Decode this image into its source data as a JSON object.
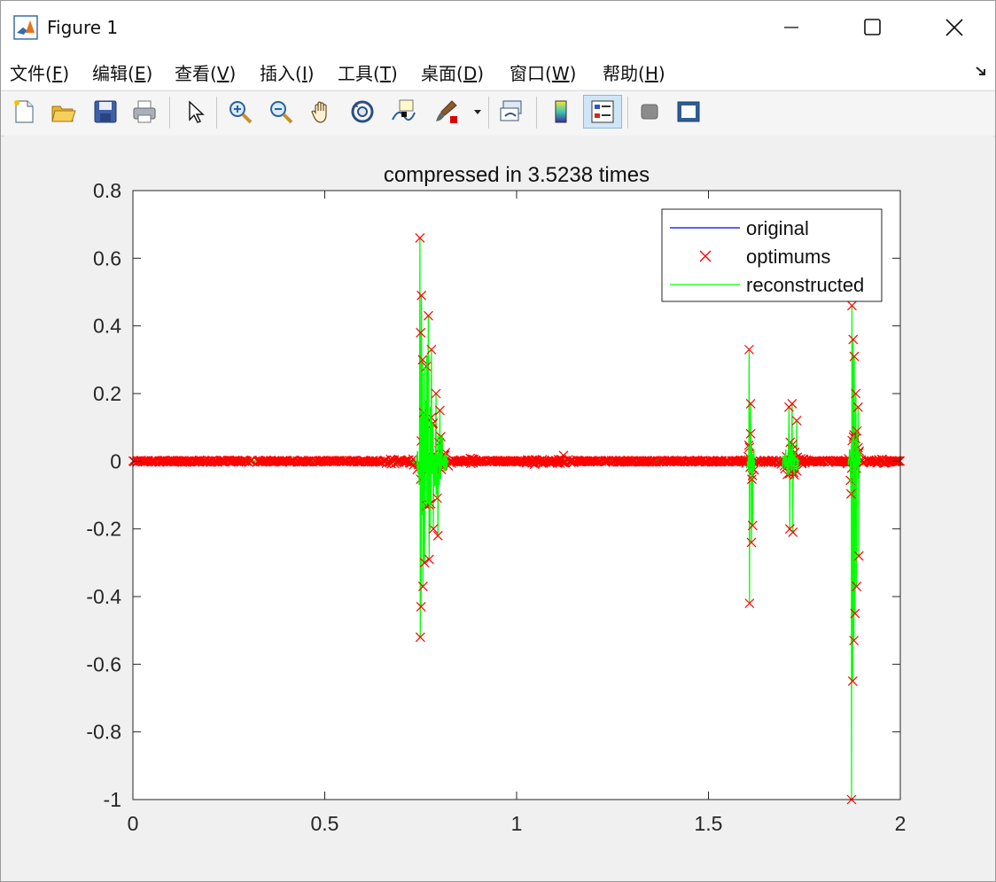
{
  "window": {
    "title": "Figure 1",
    "icons": [
      "matlab-icon",
      "minimize-icon",
      "maximize-icon",
      "close-icon"
    ]
  },
  "menu": [
    {
      "label": "文件(",
      "key": "F",
      "suffix": ")"
    },
    {
      "label": "编辑(",
      "key": "E",
      "suffix": ")"
    },
    {
      "label": "查看(",
      "key": "V",
      "suffix": ")"
    },
    {
      "label": "插入(",
      "key": "I",
      "suffix": ")"
    },
    {
      "label": "工具(",
      "key": "T",
      "suffix": ")"
    },
    {
      "label": "桌面(",
      "key": "D",
      "suffix": ")"
    },
    {
      "label": "窗口(",
      "key": "W",
      "suffix": ")"
    },
    {
      "label": "帮助(",
      "key": "H",
      "suffix": ")"
    }
  ],
  "toolbar": [
    "new-figure-icon",
    "open-file-icon",
    "save-icon",
    "print-icon",
    "pointer-icon",
    "zoom-in-icon",
    "zoom-out-icon",
    "pan-hand-icon",
    "rotate-3d-icon",
    "data-cursor-icon",
    "brush-icon",
    "link-plot-icon",
    "colorbar-icon",
    "legend-icon",
    "hide-plot-tools-icon",
    "show-plot-tools-icon"
  ],
  "colors": {
    "original": "#0000ff",
    "optimums": "#ff0000",
    "reconstructed": "#00ff00"
  },
  "chart_data": {
    "type": "line",
    "title": "compressed in 3.5238 times",
    "xlabel": "",
    "ylabel": "",
    "xlim": [
      0,
      2
    ],
    "ylim": [
      -1,
      0.8
    ],
    "xticks": [
      "0",
      "0.5",
      "1",
      "1.5",
      "2"
    ],
    "yticks": [
      "0.8",
      "0.6",
      "0.4",
      "0.2",
      "0",
      "-0.2",
      "-0.4",
      "-0.6",
      "-0.8",
      "-1"
    ],
    "grid": false,
    "legend_position": "top-right",
    "legend": [
      "original",
      "optimums",
      "reconstructed"
    ],
    "series": [
      {
        "name": "original",
        "style": "line",
        "color": "#0000ff"
      },
      {
        "name": "optimums",
        "style": "x-marker",
        "color": "#ff0000"
      },
      {
        "name": "reconstructed",
        "style": "line",
        "color": "#00ff00"
      }
    ],
    "peaks": [
      {
        "x": 0.748,
        "y": 0.66
      },
      {
        "x": 0.749,
        "y": -0.52
      },
      {
        "x": 0.752,
        "y": 0.49
      },
      {
        "x": 0.75,
        "y": 0.38
      },
      {
        "x": 0.751,
        "y": -0.43
      },
      {
        "x": 0.755,
        "y": 0.3
      },
      {
        "x": 0.756,
        "y": -0.37
      },
      {
        "x": 0.76,
        "y": -0.3
      },
      {
        "x": 0.765,
        "y": 0.28
      },
      {
        "x": 0.77,
        "y": 0.43
      },
      {
        "x": 0.772,
        "y": -0.29
      },
      {
        "x": 0.778,
        "y": 0.33
      },
      {
        "x": 0.783,
        "y": -0.2
      },
      {
        "x": 0.79,
        "y": 0.2
      },
      {
        "x": 0.8,
        "y": 0.15
      },
      {
        "x": 0.795,
        "y": -0.22
      },
      {
        "x": 1.606,
        "y": 0.33
      },
      {
        "x": 1.607,
        "y": -0.42
      },
      {
        "x": 1.61,
        "y": 0.17
      },
      {
        "x": 1.612,
        "y": -0.24
      },
      {
        "x": 1.615,
        "y": -0.19
      },
      {
        "x": 1.71,
        "y": 0.16
      },
      {
        "x": 1.712,
        "y": -0.2
      },
      {
        "x": 1.718,
        "y": 0.17
      },
      {
        "x": 1.72,
        "y": -0.21
      },
      {
        "x": 1.73,
        "y": 0.12
      },
      {
        "x": 1.873,
        "y": -1.0
      },
      {
        "x": 1.874,
        "y": 0.46
      },
      {
        "x": 1.876,
        "y": -0.65
      },
      {
        "x": 1.877,
        "y": 0.36
      },
      {
        "x": 1.879,
        "y": -0.53
      },
      {
        "x": 1.88,
        "y": 0.31
      },
      {
        "x": 1.882,
        "y": -0.45
      },
      {
        "x": 1.884,
        "y": 0.2
      },
      {
        "x": 1.886,
        "y": -0.37
      },
      {
        "x": 1.89,
        "y": 0.16
      },
      {
        "x": 1.892,
        "y": -0.28
      }
    ]
  }
}
